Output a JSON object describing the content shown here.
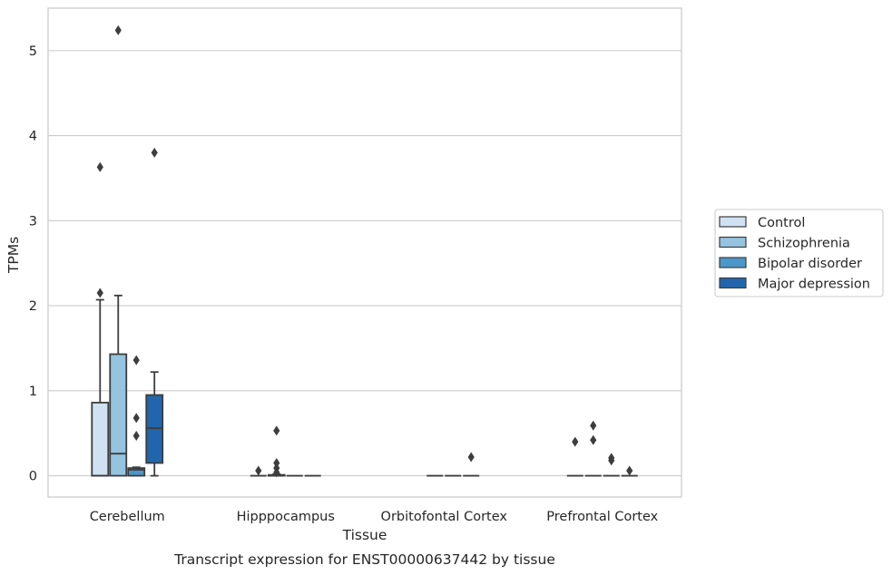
{
  "caption": "Transcript expression for ENST00000637442 by tissue",
  "chart_data": {
    "type": "box",
    "title": "",
    "xlabel": "Tissue",
    "ylabel": "TPMs",
    "categories": [
      "Cerebellum",
      "Hipppocampus",
      "Orbitofontal Cortex",
      "Prefrontal Cortex"
    ],
    "ylim": [
      -0.25,
      5.5
    ],
    "yticks": [
      0,
      1,
      2,
      3,
      4,
      5
    ],
    "grid": true,
    "legend_position": "right",
    "series": [
      {
        "name": "Control",
        "color": "#d0e1f2",
        "boxes": [
          {
            "min": 0,
            "q1": 0,
            "median": 0,
            "q3": 0.86,
            "max": 2.07,
            "outliers": [
              2.15,
              3.63
            ]
          },
          {
            "min": 0,
            "q1": 0,
            "median": 0,
            "q3": 0,
            "max": 0,
            "outliers": [
              0.06
            ]
          },
          null,
          {
            "min": 0,
            "q1": 0,
            "median": 0,
            "q3": 0,
            "max": 0,
            "outliers": [
              0.4
            ]
          }
        ]
      },
      {
        "name": "Schizophrenia",
        "color": "#94c4df",
        "boxes": [
          {
            "min": 0,
            "q1": 0,
            "median": 0.26,
            "q3": 1.43,
            "max": 2.12,
            "outliers": [
              5.24
            ]
          },
          {
            "min": 0,
            "q1": 0,
            "median": 0,
            "q3": 0.01,
            "max": 0.02,
            "outliers": [
              0.04,
              0.09,
              0.15,
              0.53
            ]
          },
          {
            "min": 0,
            "q1": 0,
            "median": 0,
            "q3": 0,
            "max": 0,
            "outliers": []
          },
          {
            "min": 0,
            "q1": 0,
            "median": 0,
            "q3": 0,
            "max": 0,
            "outliers": [
              0.42,
              0.59
            ]
          }
        ]
      },
      {
        "name": "Bipolar disorder",
        "color": "#4a98c9",
        "boxes": [
          {
            "min": 0,
            "q1": 0,
            "median": 0.07,
            "q3": 0.09,
            "max": 0.1,
            "outliers": [
              0.47,
              0.68,
              1.36
            ]
          },
          {
            "min": 0,
            "q1": 0,
            "median": 0,
            "q3": 0,
            "max": 0,
            "outliers": []
          },
          {
            "min": 0,
            "q1": 0,
            "median": 0,
            "q3": 0,
            "max": 0,
            "outliers": []
          },
          {
            "min": 0,
            "q1": 0,
            "median": 0,
            "q3": 0,
            "max": 0,
            "outliers": [
              0.18,
              0.21
            ]
          }
        ]
      },
      {
        "name": "Major depression",
        "color": "#2166ac",
        "boxes": [
          {
            "min": 0,
            "q1": 0.15,
            "median": 0.56,
            "q3": 0.95,
            "max": 1.22,
            "outliers": [
              3.8
            ]
          },
          {
            "min": 0,
            "q1": 0,
            "median": 0,
            "q3": 0,
            "max": 0,
            "outliers": []
          },
          {
            "min": 0,
            "q1": 0,
            "median": 0,
            "q3": 0,
            "max": 0,
            "outliers": [
              0.22
            ]
          },
          {
            "min": 0,
            "q1": 0,
            "median": 0,
            "q3": 0,
            "max": 0,
            "outliers": [
              0.06
            ]
          }
        ]
      }
    ]
  }
}
